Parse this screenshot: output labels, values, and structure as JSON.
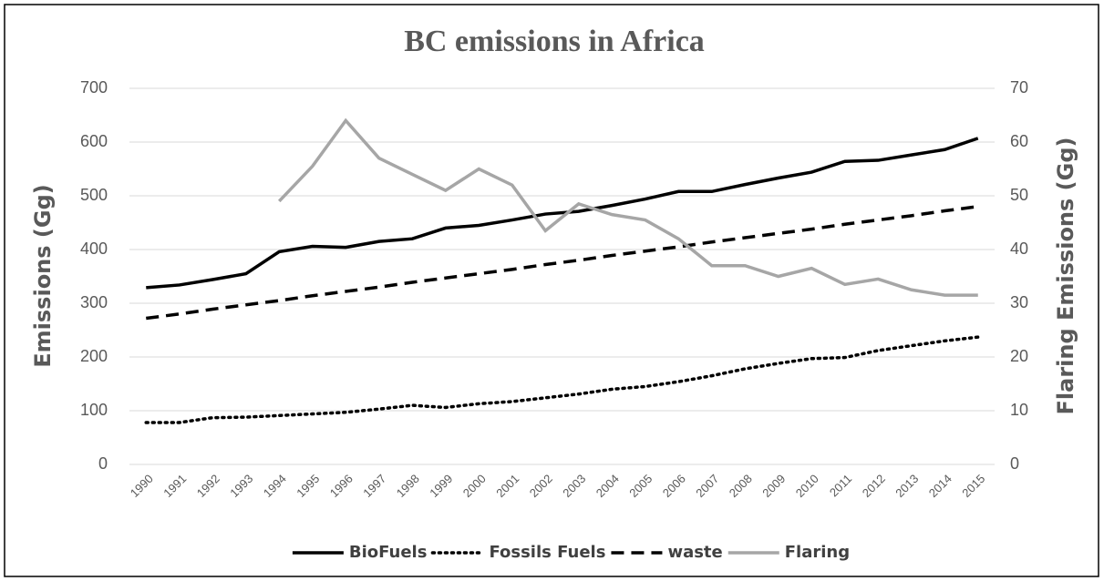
{
  "chart_data": {
    "type": "line",
    "title": "BC emissions in Africa",
    "y_label": "Emissions  (Gg)",
    "y2_label": "Flaring Emissions  (Gg)",
    "categories": [
      "1990",
      "1991",
      "1992",
      "1993",
      "1994",
      "1995",
      "1996",
      "1997",
      "1998",
      "1999",
      "2000",
      "2001",
      "2002",
      "2003",
      "2004",
      "2005",
      "2006",
      "2007",
      "2008",
      "2009",
      "2010",
      "2011",
      "2012",
      "2013",
      "2014",
      "2015"
    ],
    "series": [
      {
        "name": "BioFuels",
        "color": "#000000",
        "style": "solid",
        "values": [
          329,
          334,
          344,
          355,
          396,
          406,
          404,
          415,
          420,
          440,
          445,
          455,
          466,
          471,
          482,
          494,
          508,
          508,
          521,
          533,
          544,
          564,
          566,
          576,
          586,
          607
        ]
      },
      {
        "name": "Fossils Fuels",
        "color": "#000000",
        "style": "dotted",
        "values": [
          78,
          78,
          87,
          88,
          91,
          94,
          97,
          103,
          110,
          106,
          113,
          117,
          124,
          131,
          140,
          145,
          154,
          165,
          178,
          188,
          197,
          199,
          212,
          221,
          230,
          237
        ]
      },
      {
        "name": "waste",
        "color": "#000000",
        "style": "dashed",
        "values": [
          272,
          280,
          289,
          297,
          305,
          314,
          322,
          330,
          339,
          347,
          355,
          363,
          372,
          380,
          389,
          397,
          405,
          414,
          422,
          430,
          438,
          447,
          455,
          463,
          472,
          480
        ]
      },
      {
        "name": "Flaring",
        "color": "#a6a6a6",
        "style": "solid",
        "axis": "y2",
        "values": [
          null,
          null,
          null,
          null,
          49,
          55.5,
          64,
          57,
          54,
          51,
          55,
          52,
          43.5,
          48.5,
          46.5,
          45.5,
          42,
          37,
          37,
          35,
          36.5,
          33.5,
          34.5,
          32.5,
          31.5,
          31.5
        ]
      }
    ],
    "ylim": [
      0,
      700
    ],
    "yticks": [
      0,
      100,
      200,
      300,
      400,
      500,
      600,
      700
    ],
    "y2lim": [
      0,
      70
    ],
    "y2ticks": [
      0,
      10,
      20,
      30,
      40,
      50,
      60,
      70
    ],
    "grid": true,
    "legend": "bottom"
  }
}
